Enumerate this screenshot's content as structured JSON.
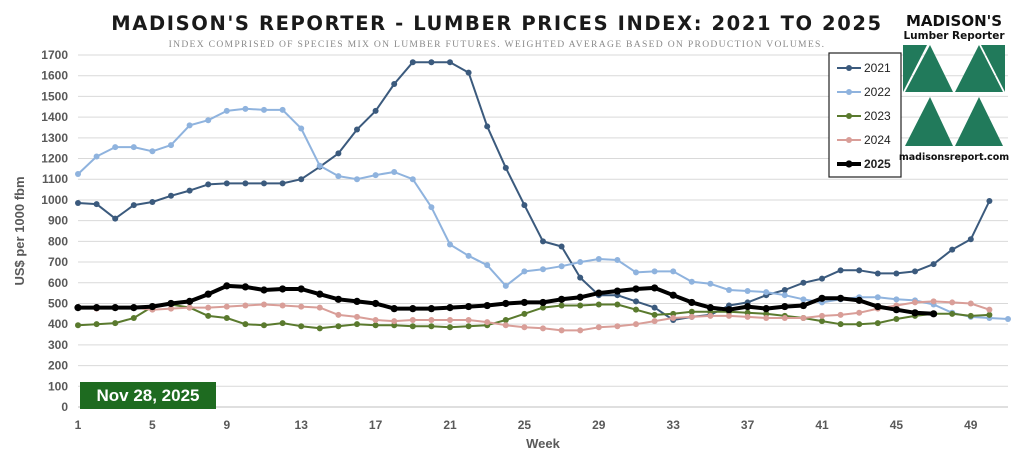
{
  "header": {
    "title": "MADISON'S REPORTER - LUMBER PRICES INDEX: 2021 TO 2025",
    "subtitle": "INDEX COMPRISED OF SPECIES MIX ON LUMBER FUTURES. WEIGHTED AVERAGE BASED ON PRODUCTION VOLUMES."
  },
  "logo": {
    "line1": "MADISON'S",
    "line2": "Lumber Reporter",
    "url": "madisonsreport.com",
    "color": "#217a5b"
  },
  "date_badge": {
    "text": "Nov 28, 2025",
    "color": "#1e6b20"
  },
  "chart_data": {
    "type": "line",
    "xlabel": "Week",
    "ylabel": "US$ per 1000 fbm",
    "xlim": [
      1,
      51
    ],
    "ylim": [
      0,
      1700
    ],
    "y_ticks": [
      0,
      100,
      200,
      300,
      400,
      500,
      600,
      700,
      800,
      900,
      1000,
      1100,
      1200,
      1300,
      1400,
      1500,
      1600,
      1700
    ],
    "x_ticks": [
      1,
      5,
      9,
      13,
      17,
      21,
      25,
      29,
      33,
      37,
      41,
      45,
      49
    ],
    "grid": "horizontal",
    "legend_position": "top-right",
    "series": [
      {
        "name": "2021",
        "color": "#3b5a7d",
        "values": [
          985,
          980,
          910,
          975,
          990,
          1020,
          1045,
          1075,
          1080,
          1080,
          1080,
          1080,
          1100,
          1160,
          1225,
          1340,
          1430,
          1560,
          1665,
          1665,
          1665,
          1615,
          1355,
          1155,
          975,
          800,
          775,
          625,
          540,
          540,
          510,
          480,
          420,
          435,
          445,
          490,
          505,
          540,
          565,
          600,
          620,
          660,
          660,
          645,
          645,
          655,
          690,
          760,
          810,
          995
        ]
      },
      {
        "name": "2022",
        "color": "#8fb3de",
        "values": [
          1125,
          1210,
          1255,
          1255,
          1235,
          1265,
          1360,
          1385,
          1430,
          1440,
          1435,
          1435,
          1345,
          1165,
          1115,
          1100,
          1120,
          1135,
          1100,
          965,
          785,
          730,
          685,
          585,
          655,
          665,
          680,
          700,
          715,
          710,
          650,
          655,
          655,
          605,
          595,
          565,
          560,
          555,
          540,
          520,
          505,
          520,
          530,
          530,
          520,
          515,
          495,
          455,
          435,
          430,
          425
        ]
      },
      {
        "name": "2023",
        "color": "#5a7a2e",
        "values": [
          395,
          400,
          405,
          430,
          485,
          495,
          480,
          440,
          430,
          400,
          395,
          405,
          390,
          380,
          390,
          400,
          395,
          395,
          390,
          390,
          385,
          390,
          395,
          420,
          450,
          480,
          490,
          490,
          495,
          495,
          470,
          445,
          450,
          460,
          460,
          460,
          455,
          450,
          440,
          430,
          415,
          400,
          400,
          405,
          425,
          440,
          450,
          450,
          440,
          445
        ]
      },
      {
        "name": "2024",
        "color": "#d99e98",
        "values": [
          480,
          475,
          480,
          480,
          470,
          475,
          480,
          480,
          485,
          490,
          495,
          490,
          485,
          480,
          445,
          435,
          420,
          415,
          420,
          420,
          420,
          420,
          410,
          395,
          385,
          380,
          370,
          370,
          385,
          390,
          400,
          415,
          430,
          435,
          440,
          440,
          435,
          430,
          430,
          430,
          440,
          445,
          455,
          475,
          490,
          505,
          510,
          505,
          500,
          470
        ]
      },
      {
        "name": "2025",
        "color": "#000000",
        "values": [
          480,
          480,
          480,
          480,
          485,
          500,
          510,
          545,
          585,
          580,
          565,
          570,
          570,
          545,
          520,
          510,
          500,
          475,
          475,
          475,
          480,
          485,
          490,
          500,
          505,
          505,
          520,
          530,
          550,
          560,
          570,
          575,
          540,
          505,
          480,
          470,
          485,
          475,
          485,
          490,
          525,
          525,
          515,
          485,
          470,
          455,
          450
        ]
      }
    ]
  }
}
